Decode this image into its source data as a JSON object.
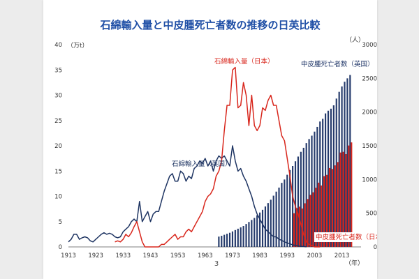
{
  "page_number": "3",
  "chart_data": {
    "type": "line",
    "title": "石綿輸入量と中皮腫死亡者数の推移の日英比較",
    "left_axis": {
      "unit": "（万t）",
      "range": [
        0,
        40
      ],
      "ticks": [
        "0",
        "5",
        "10",
        "15",
        "20",
        "25",
        "30",
        "35",
        "40"
      ]
    },
    "right_axis": {
      "unit": "（人）",
      "range": [
        0,
        3000
      ],
      "ticks": [
        "0",
        "500",
        "1000",
        "1500",
        "2000",
        "2500",
        "3000"
      ]
    },
    "x_axis": {
      "unit": "（年）",
      "range": [
        1913,
        2020
      ],
      "ticks": [
        "1913",
        "1923",
        "1933",
        "1943",
        "1953",
        "1963",
        "1973",
        "1983",
        "1993",
        "2003",
        "2013"
      ]
    },
    "series": [
      {
        "name": "石綿輸入量（英国）",
        "kind": "line",
        "axis": "left",
        "color": "#1e3462",
        "x": [
          1913,
          1914,
          1915,
          1916,
          1917,
          1918,
          1919,
          1920,
          1921,
          1922,
          1923,
          1924,
          1925,
          1926,
          1927,
          1928,
          1929,
          1930,
          1931,
          1932,
          1933,
          1934,
          1935,
          1936,
          1937,
          1938,
          1939,
          1940,
          1941,
          1942,
          1943,
          1944,
          1945,
          1946,
          1947,
          1948,
          1949,
          1950,
          1951,
          1952,
          1953,
          1954,
          1955,
          1956,
          1957,
          1958,
          1959,
          1960,
          1961,
          1962,
          1963,
          1964,
          1965,
          1966,
          1967,
          1968,
          1969,
          1970,
          1971,
          1972,
          1973,
          1974,
          1975,
          1976,
          1977,
          1978,
          1979,
          1980,
          1981,
          1982,
          1983,
          1984,
          1985,
          1986,
          1987,
          1988,
          1989,
          1990,
          1991,
          1992,
          1993,
          1994,
          1995,
          1996,
          1997,
          1998,
          1999,
          2000
        ],
        "values": [
          1.0,
          1.5,
          2.5,
          2.5,
          1.5,
          1.8,
          2.0,
          1.8,
          1.2,
          1.0,
          1.5,
          2.0,
          2.5,
          2.8,
          2.5,
          2.7,
          2.5,
          2.0,
          1.8,
          2.0,
          3.0,
          3.5,
          4.0,
          5.0,
          5.5,
          5.0,
          9.0,
          5.0,
          6.0,
          7.0,
          5.0,
          6.5,
          7.0,
          7.0,
          9.0,
          11.0,
          12.5,
          14.0,
          14.5,
          13.0,
          13.0,
          15.0,
          14.5,
          13.0,
          14.0,
          13.5,
          15.5,
          16.0,
          17.0,
          16.5,
          17.5,
          16.0,
          17.0,
          15.0,
          17.0,
          18.0,
          17.5,
          18.0,
          17.0,
          16.0,
          20.0,
          17.0,
          15.0,
          15.5,
          14.0,
          13.0,
          11.5,
          10.0,
          8.0,
          6.5,
          5.5,
          4.5,
          3.5,
          3.0,
          2.5,
          2.0,
          2.0,
          1.5,
          1.3,
          1.0,
          0.8,
          0.6,
          0.4,
          0.3,
          0.2,
          0.1,
          0.1,
          0.0
        ]
      },
      {
        "name": "石綿輸入量（日本）",
        "kind": "line",
        "axis": "left",
        "color": "#d8261c",
        "x": [
          1930,
          1931,
          1932,
          1933,
          1934,
          1935,
          1936,
          1937,
          1938,
          1939,
          1940,
          1941,
          1942,
          1943,
          1944,
          1945,
          1946,
          1947,
          1948,
          1949,
          1950,
          1951,
          1952,
          1953,
          1954,
          1955,
          1956,
          1957,
          1958,
          1959,
          1960,
          1961,
          1962,
          1963,
          1964,
          1965,
          1966,
          1967,
          1968,
          1969,
          1970,
          1971,
          1972,
          1973,
          1974,
          1975,
          1976,
          1977,
          1978,
          1979,
          1980,
          1981,
          1982,
          1983,
          1984,
          1985,
          1986,
          1987,
          1988,
          1989,
          1990,
          1991,
          1992,
          1993,
          1994,
          1995,
          1996,
          1997,
          1998,
          1999,
          2000,
          2001,
          2002,
          2003,
          2004,
          2005
        ],
        "values": [
          1.0,
          1.2,
          1.0,
          1.5,
          2.5,
          2.0,
          2.8,
          4.0,
          5.0,
          3.0,
          1.0,
          0.0,
          0.0,
          0.0,
          0.0,
          0.0,
          0.0,
          0.5,
          0.5,
          1.0,
          1.5,
          2.0,
          2.5,
          1.5,
          2.0,
          2.0,
          3.0,
          3.5,
          3.0,
          4.0,
          5.0,
          6.0,
          7.0,
          9.0,
          10.0,
          10.5,
          11.5,
          14.0,
          15.0,
          17.0,
          23.0,
          28.0,
          28.0,
          35.0,
          35.5,
          27.5,
          28.0,
          32.5,
          30.0,
          24.0,
          30.0,
          24.0,
          23.0,
          24.0,
          27.5,
          27.0,
          29.0,
          30.0,
          28.0,
          28.0,
          25.0,
          22.0,
          21.0,
          17.5,
          14.0,
          10.0,
          8.0,
          6.5,
          4.5,
          2.5,
          1.0,
          0.5,
          0.3,
          0.0,
          0.0,
          0.0
        ]
      },
      {
        "name": "中皮腫死亡者数（英国）",
        "kind": "bar",
        "axis": "right",
        "color": "#243a6b",
        "x": [
          1968,
          1969,
          1970,
          1971,
          1972,
          1973,
          1974,
          1975,
          1976,
          1977,
          1978,
          1979,
          1980,
          1981,
          1982,
          1983,
          1984,
          1985,
          1986,
          1987,
          1988,
          1989,
          1990,
          1991,
          1992,
          1993,
          1994,
          1995,
          1996,
          1997,
          1998,
          1999,
          2000,
          2001,
          2002,
          2003,
          2004,
          2005,
          2006,
          2007,
          2008,
          2009,
          2010,
          2011,
          2012,
          2013,
          2014,
          2015,
          2016
        ],
        "values": [
          153,
          165,
          180,
          195,
          210,
          230,
          250,
          270,
          290,
          310,
          340,
          370,
          400,
          430,
          470,
          510,
          550,
          600,
          650,
          700,
          760,
          820,
          880,
          950,
          1000,
          1070,
          1140,
          1200,
          1270,
          1340,
          1410,
          1470,
          1540,
          1600,
          1650,
          1710,
          1780,
          1860,
          1900,
          1980,
          2020,
          2050,
          2100,
          2200,
          2300,
          2380,
          2450,
          2500,
          2550
        ]
      },
      {
        "name": "中皮腫死亡者数（日本）",
        "kind": "bar",
        "axis": "right",
        "color": "#d8261c",
        "x": [
          1995,
          1996,
          1997,
          1998,
          1999,
          2000,
          2001,
          2002,
          2003,
          2004,
          2005,
          2006,
          2007,
          2008,
          2009,
          2010,
          2011,
          2012,
          2013,
          2014,
          2015,
          2016
        ],
        "values": [
          500,
          576,
          597,
          570,
          647,
          710,
          772,
          810,
          878,
          953,
          911,
          1050,
          1068,
          1170,
          1156,
          1209,
          1258,
          1400,
          1410,
          1376,
          1504,
          1550
        ]
      }
    ],
    "labels": [
      {
        "text": "石綿輸入量（英国）",
        "color": "#1e3462"
      },
      {
        "text": "石綿輸入量（日本）",
        "color": "#d8261c"
      },
      {
        "text": "中皮腫死亡者数（英国）",
        "color": "#243a6b"
      },
      {
        "text": "中皮腫死亡者数（日本）",
        "color": "#d8261c"
      }
    ]
  }
}
